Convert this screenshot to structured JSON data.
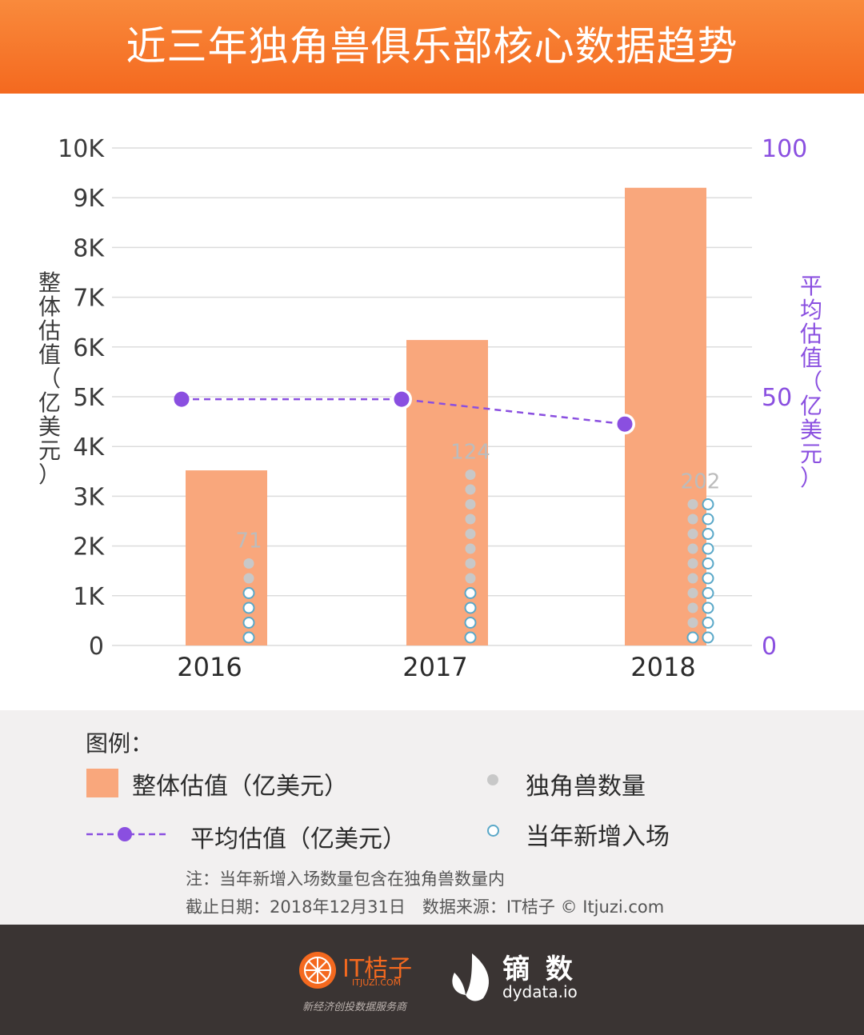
{
  "header": {
    "title": "近三年独角兽俱乐部核心数据趋势"
  },
  "chart_data": {
    "type": "bar",
    "categories": [
      "2016",
      "2017",
      "2018"
    ],
    "y_left": {
      "label": "整体估值（亿美元）",
      "ticks": [
        "0",
        "1K",
        "2K",
        "3K",
        "4K",
        "5K",
        "6K",
        "7K",
        "8K",
        "9K",
        "10K"
      ],
      "ylim": [
        0,
        10000
      ]
    },
    "y_right": {
      "label": "平均估值（亿美元）",
      "ticks": [
        "0",
        "50",
        "100"
      ],
      "ylim": [
        0,
        100
      ]
    },
    "grid": true,
    "series": [
      {
        "name": "整体估值（亿美元）",
        "type": "bar",
        "values": [
          3520,
          6140,
          9200
        ]
      },
      {
        "name": "平均估值（亿美元）",
        "type": "line",
        "axis": "right",
        "values": [
          49.5,
          49.5,
          44.5
        ]
      },
      {
        "name": "独角兽数量",
        "type": "dot-column",
        "values": [
          71,
          124,
          202
        ],
        "labels": [
          "71",
          "124",
          "202"
        ]
      },
      {
        "name": "当年新增入场",
        "type": "dot-column"
      }
    ]
  },
  "legend": {
    "heading": "图例：",
    "items": [
      {
        "label": "整体估值（亿美元）"
      },
      {
        "label": "独角兽数量"
      },
      {
        "label": "平均估值（亿美元）"
      },
      {
        "label": "当年新增入场"
      }
    ],
    "note": "注：当年新增入场数量包含在独角兽数量内",
    "source": "截止日期：2018年12月31日　数据来源：IT桔子 © Itjuzi.com"
  },
  "footer": {
    "brand1_name": "IT桔子",
    "brand1_sub": "ITJUZI.COM",
    "brand1_tagline": "新经济创投数据服务商",
    "brand2_name": "镝 数",
    "brand2_sub": "dydata.io"
  },
  "colors": {
    "header": "#f4691f",
    "bar": "#f9a77c",
    "line": "#8a4fe0",
    "dot_gray": "#c8c8c8",
    "dot_teal": "#5aa8c8",
    "axis_right": "#8a4fe0",
    "footer": "#3a3433"
  }
}
